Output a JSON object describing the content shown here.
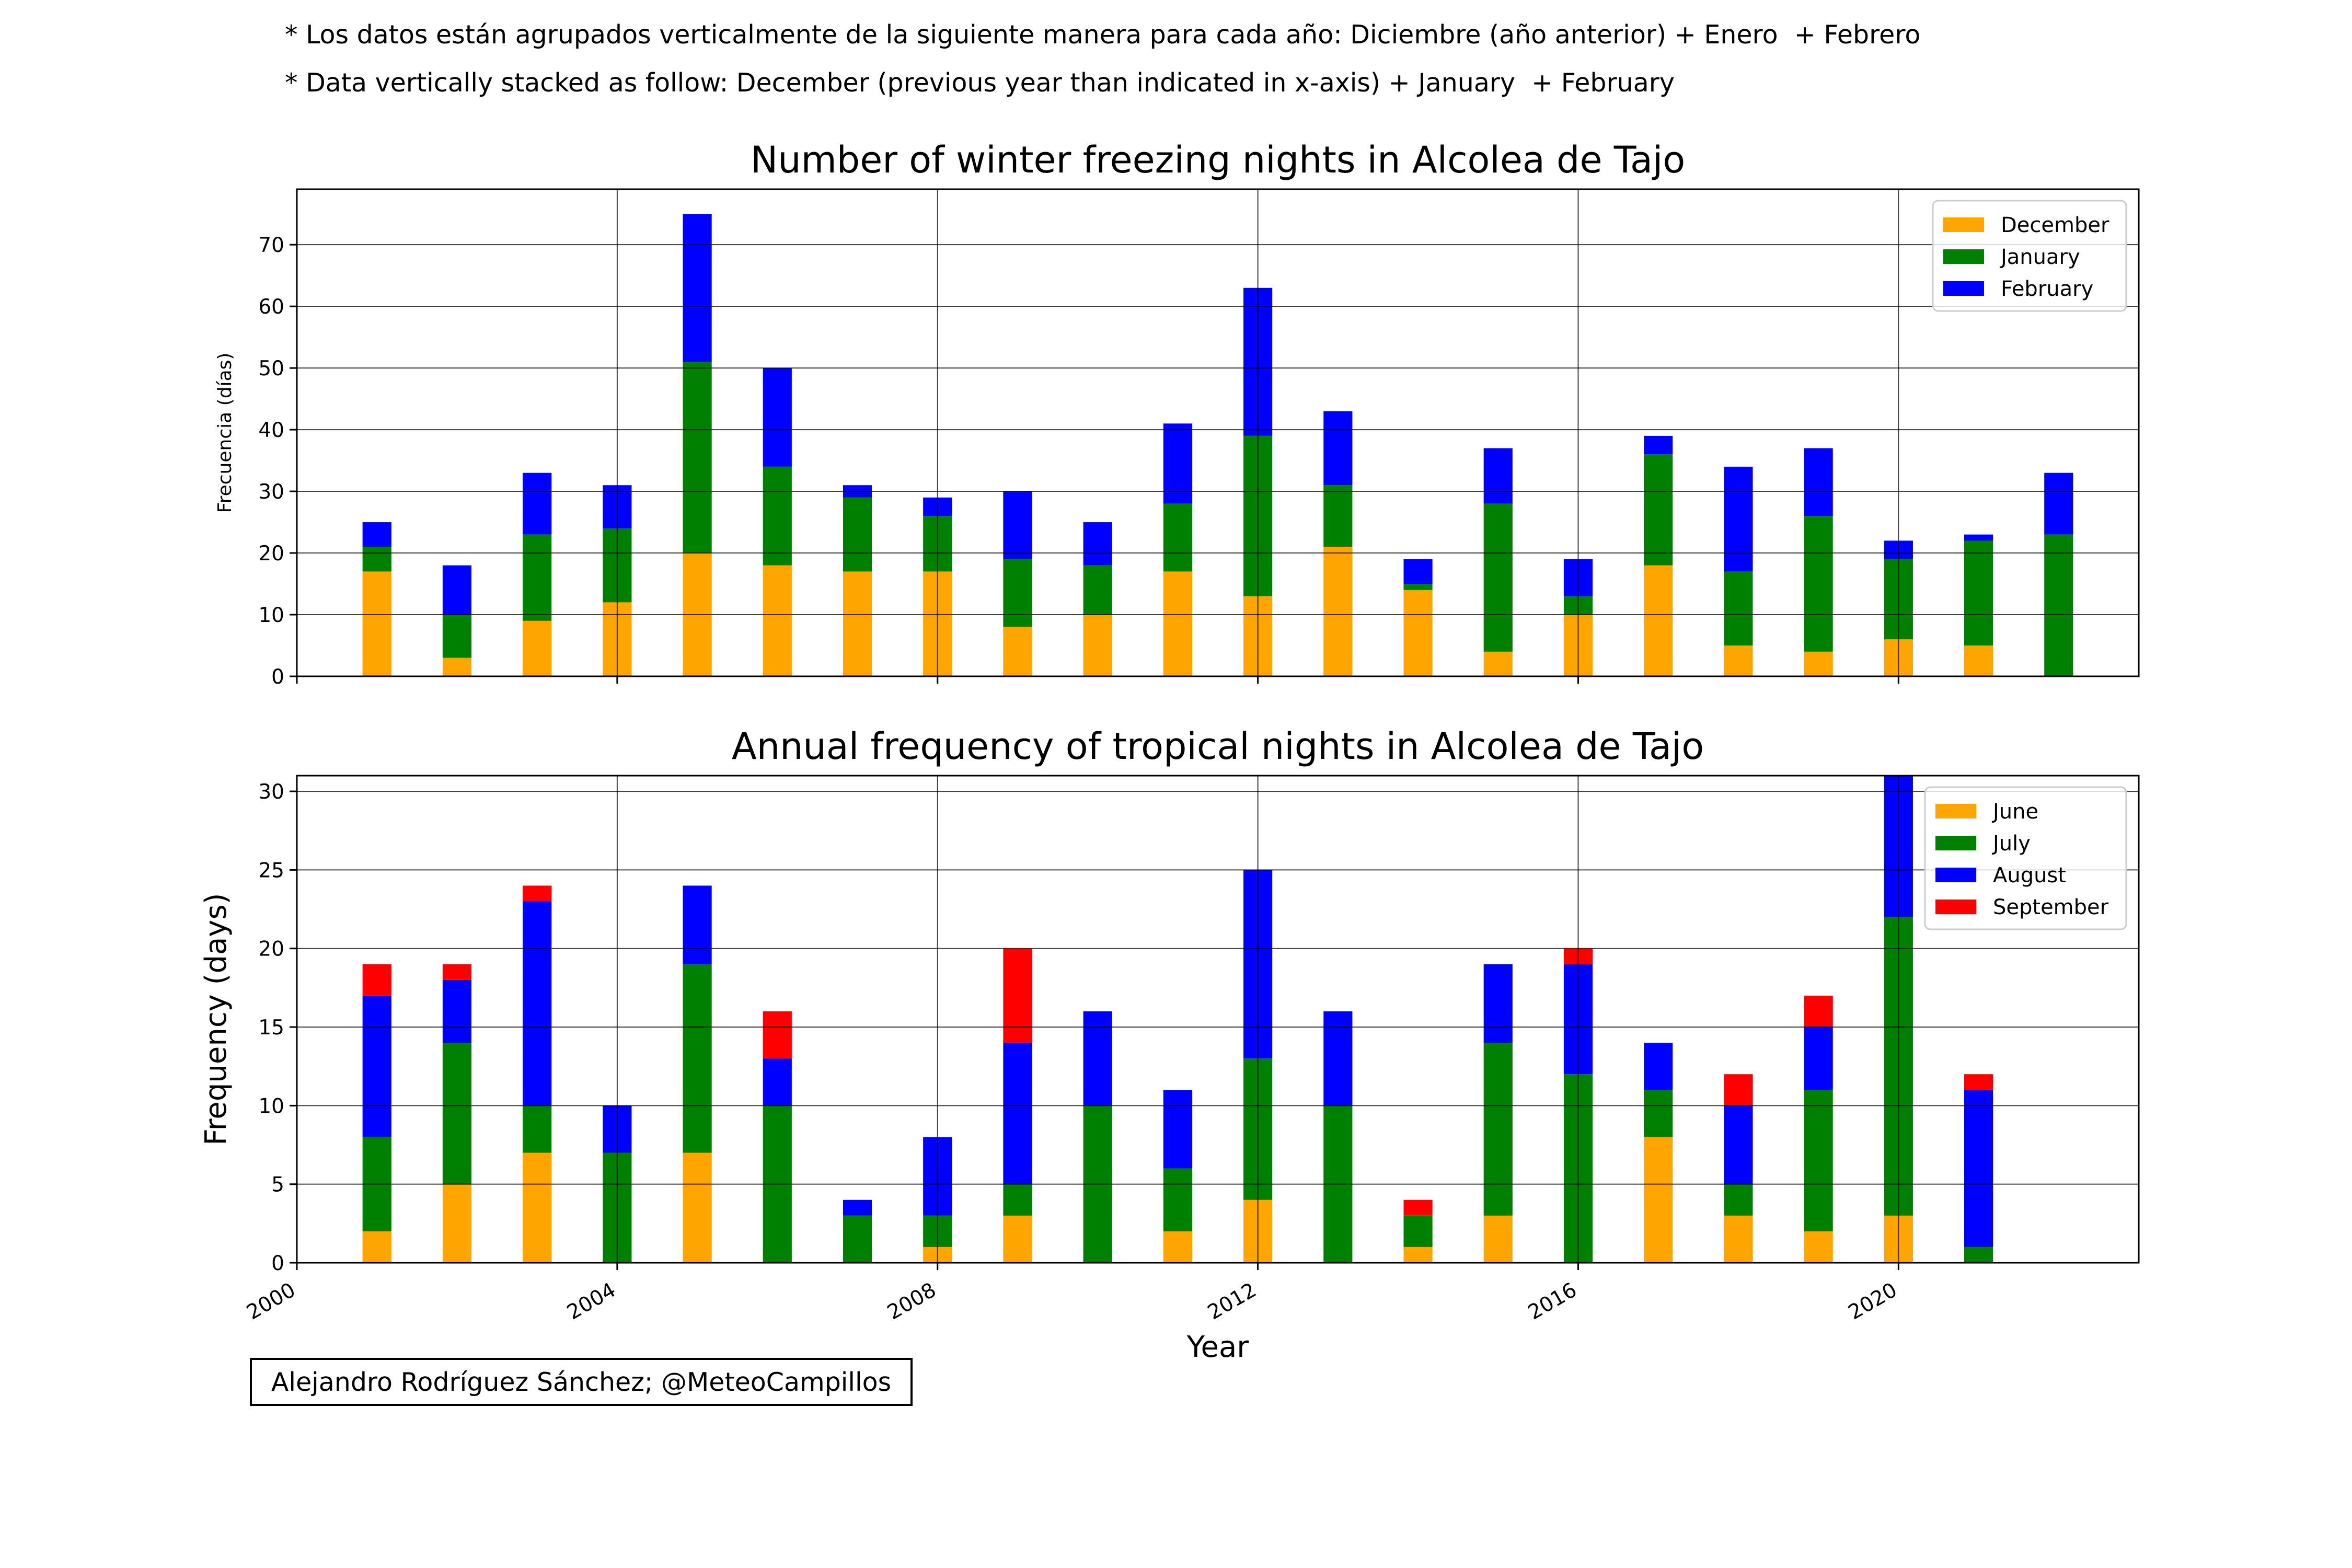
{
  "notes": {
    "spanish": "* Los datos están agrupados verticalmente de la siguiente manera para cada año: Diciembre (año anterior) + Enero  + Febrero",
    "english": "* Data vertically stacked as follow: December (previous year than indicated in x-axis) + January  + February"
  },
  "credit": "Alejandro Rodríguez Sánchez; @MeteoCampillos",
  "chart_data": [
    {
      "type": "bar",
      "stacked": true,
      "title": "Number of winter freezing nights in Alcolea de Tajo",
      "xlabel": "",
      "ylabel": "Frecuencia (días)",
      "xlim": [
        2000,
        2023
      ],
      "ylim": [
        0,
        79
      ],
      "xticks": [
        2000,
        2004,
        2008,
        2012,
        2016,
        2020
      ],
      "xtick_labels": [
        "",
        "",
        "",
        "",
        "",
        ""
      ],
      "yticks": [
        0,
        10,
        20,
        30,
        40,
        50,
        60,
        70
      ],
      "grid": true,
      "legend": "top-right",
      "x": [
        2001,
        2002,
        2003,
        2004,
        2005,
        2006,
        2007,
        2008,
        2009,
        2010,
        2011,
        2012,
        2013,
        2014,
        2015,
        2016,
        2017,
        2018,
        2019,
        2020,
        2021,
        2022
      ],
      "series": [
        {
          "name": "December",
          "color": "#ffa500",
          "values": [
            17,
            3,
            9,
            12,
            20,
            18,
            17,
            17,
            8,
            10,
            17,
            13,
            21,
            14,
            4,
            10,
            18,
            5,
            4,
            6,
            5,
            0
          ]
        },
        {
          "name": "January",
          "color": "#008000",
          "values": [
            4,
            7,
            14,
            12,
            31,
            16,
            12,
            9,
            11,
            8,
            11,
            26,
            10,
            1,
            24,
            3,
            18,
            12,
            22,
            13,
            17,
            23
          ]
        },
        {
          "name": "February",
          "color": "#0000ff",
          "values": [
            4,
            8,
            10,
            7,
            24,
            16,
            2,
            3,
            11,
            7,
            13,
            24,
            12,
            4,
            9,
            6,
            3,
            17,
            11,
            3,
            1,
            10
          ]
        }
      ]
    },
    {
      "type": "bar",
      "stacked": true,
      "title": "Annual frequency of tropical nights in Alcolea de Tajo",
      "xlabel": "Year",
      "ylabel": "Frequency (days)",
      "xlim": [
        2000,
        2023
      ],
      "ylim": [
        0,
        31
      ],
      "xticks": [
        2000,
        2004,
        2008,
        2012,
        2016,
        2020
      ],
      "xtick_labels": [
        "2000",
        "2004",
        "2008",
        "2012",
        "2016",
        "2020"
      ],
      "yticks": [
        0,
        5,
        10,
        15,
        20,
        25,
        30
      ],
      "grid": true,
      "legend": "top-right",
      "x": [
        2001,
        2002,
        2003,
        2004,
        2005,
        2006,
        2007,
        2008,
        2009,
        2010,
        2011,
        2012,
        2013,
        2014,
        2015,
        2016,
        2017,
        2018,
        2019,
        2020,
        2021
      ],
      "series": [
        {
          "name": "June",
          "color": "#ffa500",
          "values": [
            2,
            5,
            7,
            0,
            7,
            0,
            0,
            1,
            3,
            0,
            2,
            4,
            0,
            1,
            3,
            0,
            8,
            3,
            2,
            3,
            0
          ]
        },
        {
          "name": "July",
          "color": "#008000",
          "values": [
            6,
            9,
            3,
            7,
            12,
            10,
            3,
            2,
            2,
            10,
            4,
            9,
            10,
            2,
            11,
            12,
            3,
            2,
            9,
            19,
            1
          ]
        },
        {
          "name": "August",
          "color": "#0000ff",
          "values": [
            9,
            4,
            13,
            3,
            5,
            3,
            1,
            5,
            9,
            6,
            5,
            12,
            6,
            0,
            5,
            7,
            3,
            5,
            4,
            9,
            10
          ]
        },
        {
          "name": "September",
          "color": "#ff0000",
          "values": [
            2,
            1,
            1,
            0,
            0,
            3,
            0,
            0,
            6,
            0,
            0,
            0,
            0,
            1,
            0,
            1,
            0,
            2,
            2,
            0,
            1
          ]
        }
      ]
    }
  ]
}
